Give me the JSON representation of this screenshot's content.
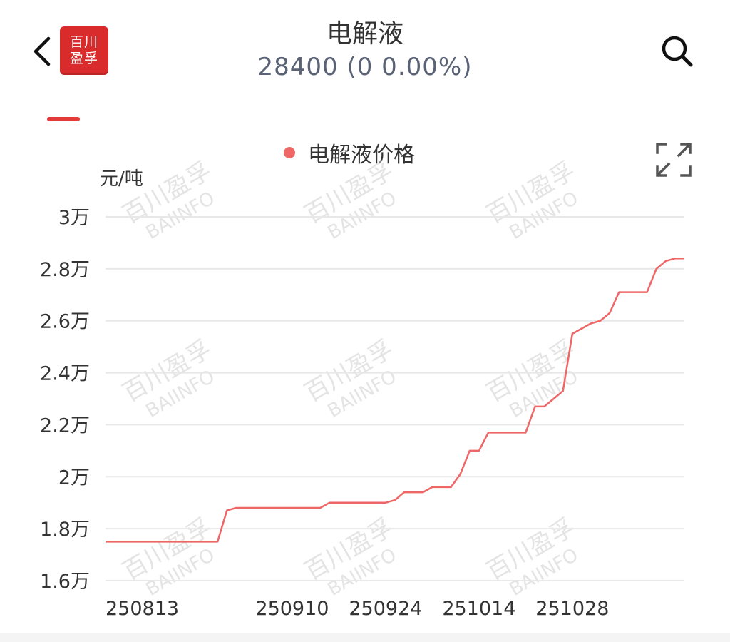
{
  "header": {
    "back_icon": "chevron-left-icon",
    "logo_line1": "百川",
    "logo_line2": "盈孚",
    "title": "电解液",
    "quote": "28400 (0  0.00%)",
    "search_icon": "search-icon"
  },
  "colors": {
    "brand": "#d92b2b",
    "line": "#ee6666",
    "grid": "#e8e8e8",
    "quote_text": "#5a6275"
  },
  "chart": {
    "unit_label": "元/吨",
    "legend_label": "电解液价格",
    "fullscreen_icon": "expand-icon",
    "watermark_cn": "百川盈孚",
    "watermark_en": "BAIINFO"
  },
  "chart_data": {
    "type": "line",
    "title": "",
    "ylabel": "元/吨",
    "xlabel": "",
    "ylim": [
      16000,
      30000
    ],
    "y_ticks": [
      {
        "value": 30000,
        "label": "3万"
      },
      {
        "value": 28000,
        "label": "2.8万"
      },
      {
        "value": 26000,
        "label": "2.6万"
      },
      {
        "value": 24000,
        "label": "2.4万"
      },
      {
        "value": 22000,
        "label": "2.2万"
      },
      {
        "value": 20000,
        "label": "2万"
      },
      {
        "value": 18000,
        "label": "1.8万"
      },
      {
        "value": 16000,
        "label": "1.6万"
      }
    ],
    "x_ticks": [
      {
        "index": 0,
        "label": "250813"
      },
      {
        "index": 20,
        "label": "250910"
      },
      {
        "index": 30,
        "label": "250924"
      },
      {
        "index": 40,
        "label": "251014"
      },
      {
        "index": 50,
        "label": "251028"
      }
    ],
    "grid": true,
    "legend_position": "top-center",
    "series": [
      {
        "name": "电解液价格",
        "values": [
          17500,
          17500,
          17500,
          17500,
          17500,
          17500,
          17500,
          17500,
          17500,
          17500,
          17500,
          17500,
          17500,
          18700,
          18800,
          18800,
          18800,
          18800,
          18800,
          18800,
          18800,
          18800,
          18800,
          18800,
          19000,
          19000,
          19000,
          19000,
          19000,
          19000,
          19000,
          19100,
          19400,
          19400,
          19400,
          19600,
          19600,
          19600,
          20100,
          21000,
          21000,
          21700,
          21700,
          21700,
          21700,
          21700,
          22700,
          22700,
          23000,
          23300,
          25500,
          25700,
          25900,
          26000,
          26300,
          27100,
          27100,
          27100,
          27100,
          28000,
          28300,
          28400,
          28400
        ]
      }
    ]
  }
}
